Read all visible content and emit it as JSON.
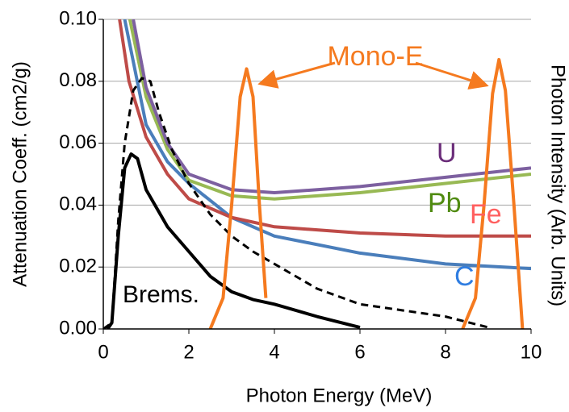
{
  "chart_data": {
    "type": "line",
    "xlabel": "Photon Energy (MeV)",
    "ylabel": "Attenuation Coeff.  (cm2/g)",
    "y2label": "Photon Intensity (Arb. Units)",
    "xlim": [
      0,
      10
    ],
    "ylim": [
      0,
      0.1
    ],
    "xticks": [
      0,
      2,
      4,
      6,
      8,
      10
    ],
    "yticks": [
      {
        "value": 0,
        "label": "0.00"
      },
      {
        "value": 0.02,
        "label": "0.02"
      },
      {
        "value": 0.04,
        "label": "0.04"
      },
      {
        "value": 0.06,
        "label": "0.06"
      },
      {
        "value": 0.08,
        "label": "0.08"
      },
      {
        "value": 0.1,
        "label": "0.10"
      }
    ],
    "grid": true,
    "series": [
      {
        "name": "C",
        "color": "#4a7ebb",
        "x": [
          0.5,
          1,
          1.5,
          2,
          3,
          4,
          6,
          8,
          10
        ],
        "values": [
          0.1,
          0.066,
          0.054,
          0.047,
          0.036,
          0.03,
          0.0245,
          0.021,
          0.0195
        ]
      },
      {
        "name": "Fe",
        "color": "#be4b48",
        "x": [
          0.38,
          0.6,
          1,
          1.5,
          2,
          3,
          4,
          6,
          8,
          10
        ],
        "values": [
          0.1,
          0.08,
          0.062,
          0.05,
          0.042,
          0.036,
          0.033,
          0.031,
          0.03,
          0.03
        ]
      },
      {
        "name": "Pb",
        "color": "#98b954",
        "x": [
          0.62,
          1,
          1.5,
          2,
          3,
          4,
          6,
          8,
          10
        ],
        "values": [
          0.1,
          0.075,
          0.058,
          0.048,
          0.043,
          0.042,
          0.044,
          0.047,
          0.05
        ]
      },
      {
        "name": "U",
        "color": "#7d60a0",
        "x": [
          0.7,
          1,
          1.5,
          2,
          3,
          4,
          6,
          8,
          10
        ],
        "values": [
          0.1,
          0.078,
          0.06,
          0.05,
          0.045,
          0.044,
          0.046,
          0.049,
          0.052
        ]
      },
      {
        "name": "Brems.",
        "color": "#000000",
        "x": [
          0.1,
          0.2,
          0.35,
          0.5,
          0.65,
          0.8,
          1,
          1.5,
          2,
          2.5,
          3,
          3.5,
          4,
          5,
          6
        ],
        "values": [
          0,
          0.002,
          0.03,
          0.052,
          0.0565,
          0.055,
          0.045,
          0.033,
          0.025,
          0.017,
          0.012,
          0.0095,
          0.008,
          0.004,
          0.0005
        ]
      },
      {
        "color": "#000000",
        "dashed": true,
        "x": [
          0,
          0.2,
          0.35,
          0.5,
          0.7,
          0.9,
          1.1,
          1.3,
          1.6,
          2,
          2.5,
          3,
          3.5,
          4,
          5,
          6,
          7,
          8,
          9
        ],
        "values": [
          0,
          0.002,
          0.035,
          0.06,
          0.077,
          0.081,
          0.08,
          0.07,
          0.058,
          0.047,
          0.037,
          0.03,
          0.025,
          0.021,
          0.013,
          0.008,
          0.006,
          0.004,
          0.0005
        ]
      },
      {
        "name": "Mono-E",
        "color": "#f57a1f",
        "x": [
          2.5,
          2.8,
          3,
          3.2,
          3.35,
          3.5,
          3.65,
          3.8,
          null,
          8.4,
          8.7,
          8.9,
          9.1,
          9.25,
          9.4,
          9.6,
          9.75,
          9.8
        ],
        "values": [
          0,
          0.01,
          0.04,
          0.075,
          0.084,
          0.075,
          0.04,
          0.01,
          null,
          0,
          0.01,
          0.04,
          0.076,
          0.087,
          0.077,
          0.04,
          0.01,
          0
        ]
      }
    ]
  }
}
